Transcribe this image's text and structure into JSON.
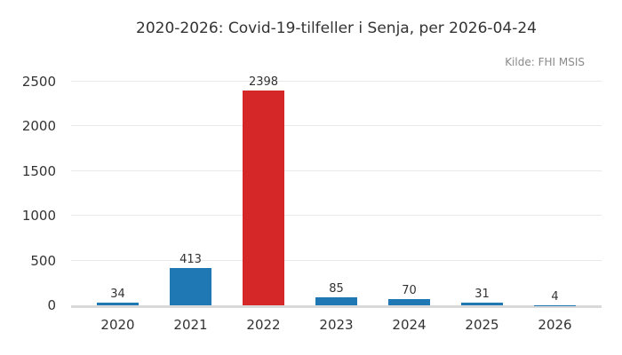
{
  "chart_data": {
    "type": "bar",
    "title": "2020-2026: Covid-19-tilfeller i Senja, per 2026-04-24",
    "annotation": "Kilde: FHI MSIS",
    "categories": [
      "2020",
      "2021",
      "2022",
      "2023",
      "2024",
      "2025",
      "2026"
    ],
    "values": [
      34,
      413,
      2398,
      85,
      70,
      31,
      4
    ],
    "value_labels": [
      "34",
      "413",
      "2398",
      "85",
      "70",
      "31",
      "4"
    ],
    "bar_colors": [
      "#1f77b4",
      "#1f77b4",
      "#d62728",
      "#1f77b4",
      "#1f77b4",
      "#1f77b4",
      "#1f77b4"
    ],
    "xlabel": "",
    "ylabel": "",
    "ylim": [
      0,
      2500
    ],
    "yticks": [
      0,
      500,
      1000,
      1500,
      2000,
      2500
    ],
    "grid": "horizontal",
    "legend": "none",
    "colors": {
      "bar_default": "#1f77b4",
      "bar_highlight": "#d62728",
      "gridline": "#e9e9e9",
      "axis_line": "#d9d9d9",
      "text": "#333333",
      "muted_text": "#8a8a8a",
      "background": "#ffffff"
    }
  }
}
